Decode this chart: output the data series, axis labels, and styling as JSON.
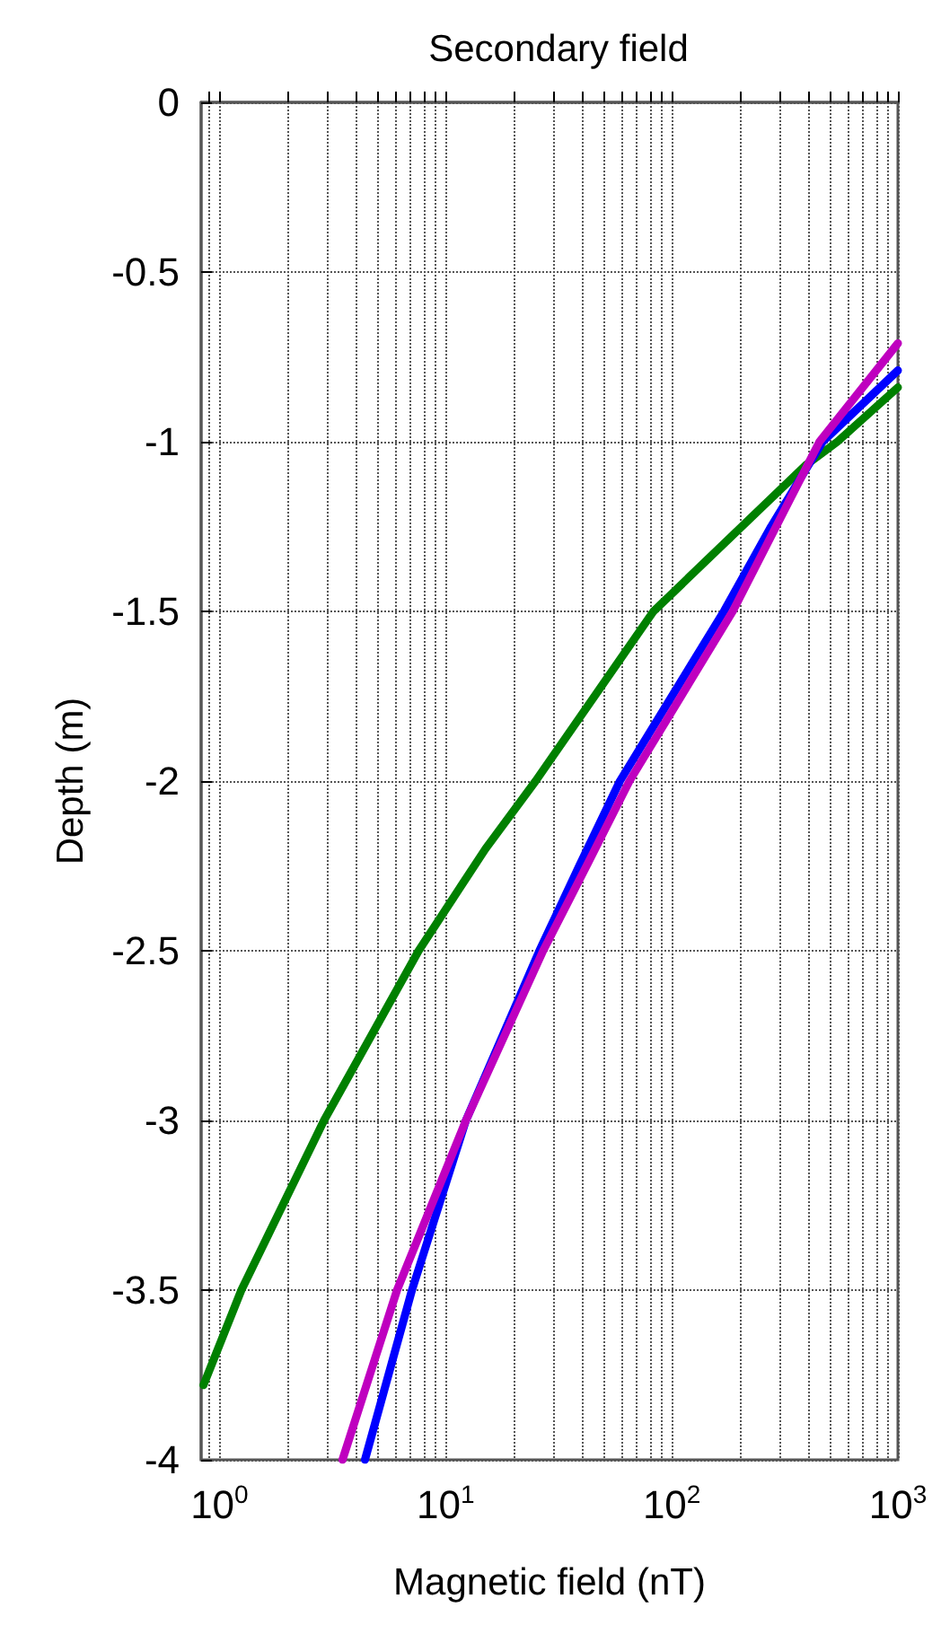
{
  "chart_data": {
    "type": "line",
    "title": "Secondary field",
    "xlabel": "Magnetic field (nT)",
    "ylabel": "Depth (m)",
    "log": "x",
    "grid": true,
    "line_style": "solid",
    "marker": "none",
    "xlim": [
      0.83,
      1000
    ],
    "ylim": [
      -4,
      0
    ],
    "xticks": [
      {
        "value": 0.9,
        "label": null
      },
      {
        "value": 1,
        "label": "10$^{0}$"
      },
      {
        "value": 2,
        "label": null
      },
      {
        "value": 3,
        "label": null
      },
      {
        "value": 4,
        "label": null
      },
      {
        "value": 5,
        "label": null
      },
      {
        "value": 6,
        "label": null
      },
      {
        "value": 7,
        "label": null
      },
      {
        "value": 8,
        "label": null
      },
      {
        "value": 9,
        "label": null
      },
      {
        "value": 10,
        "label": "10$^{1}$"
      },
      {
        "value": 20,
        "label": null
      },
      {
        "value": 30,
        "label": null
      },
      {
        "value": 40,
        "label": null
      },
      {
        "value": 50,
        "label": null
      },
      {
        "value": 60,
        "label": null
      },
      {
        "value": 70,
        "label": null
      },
      {
        "value": 80,
        "label": null
      },
      {
        "value": 90,
        "label": null
      },
      {
        "value": 100,
        "label": "10$^{2}$"
      },
      {
        "value": 200,
        "label": null
      },
      {
        "value": 300,
        "label": null
      },
      {
        "value": 400,
        "label": null
      },
      {
        "value": 500,
        "label": null
      },
      {
        "value": 600,
        "label": null
      },
      {
        "value": 700,
        "label": null
      },
      {
        "value": 800,
        "label": null
      },
      {
        "value": 900,
        "label": null
      },
      {
        "value": 1000,
        "label": "10$^{3}$"
      }
    ],
    "yticks": [
      -4,
      -3.5,
      -3,
      -2.5,
      -2,
      -1.5,
      -1,
      -0.5,
      0
    ],
    "series": [
      {
        "color": "#008000",
        "x": [
          0.85,
          1.25,
          2.9,
          7.6,
          15,
          25,
          83,
          390,
          540,
          1000
        ],
        "values": [
          -3.78,
          -3.5,
          -3,
          -2.5,
          -2.2,
          -2,
          -1.5,
          -1.07,
          -1,
          -0.84
        ]
      },
      {
        "color": "#0000ff",
        "x": [
          4.4,
          7.1,
          12.3,
          26,
          39,
          59,
          170,
          275,
          465,
          1000
        ],
        "values": [
          -4,
          -3.5,
          -3,
          -2.5,
          -2.25,
          -2,
          -1.5,
          -1.25,
          -1,
          -0.79
        ]
      },
      {
        "color": "#bf00bf",
        "x": [
          3.5,
          6.1,
          12.3,
          27,
          42,
          65,
          186,
          450,
          1000
        ],
        "values": [
          -4,
          -3.5,
          -3,
          -2.5,
          -2.25,
          -2,
          -1.5,
          -1,
          -0.71
        ]
      }
    ]
  }
}
